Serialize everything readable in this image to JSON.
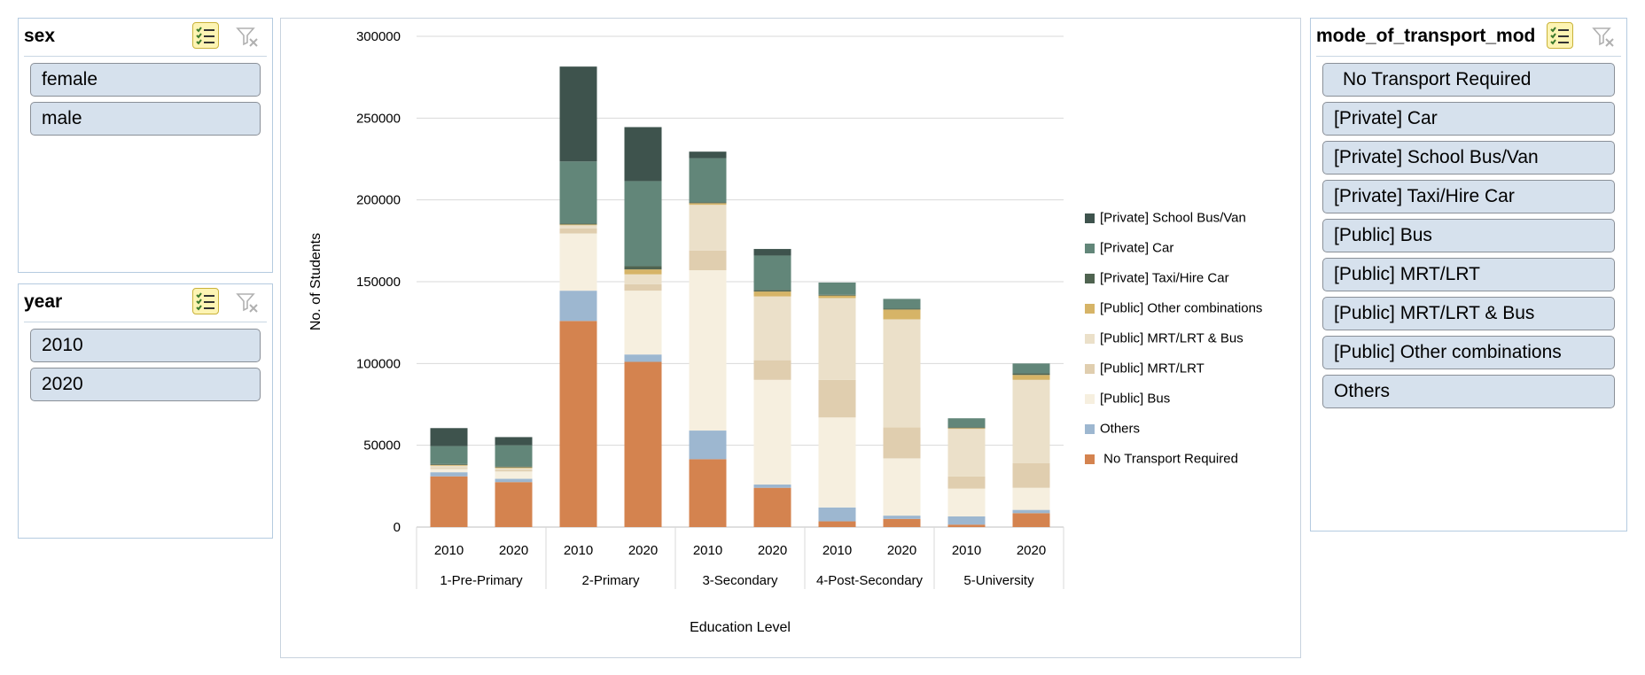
{
  "slicers": {
    "sex": {
      "title": "sex",
      "items": [
        "female",
        "male"
      ]
    },
    "year": {
      "title": "year",
      "items": [
        "2010",
        "2020"
      ]
    },
    "mode": {
      "title": "mode_of_transport_mod",
      "items": [
        " No Transport Required",
        "[Private] Car",
        "[Private] School Bus/Van",
        "[Private] Taxi/Hire Car",
        "[Public] Bus",
        "[Public] MRT/LRT",
        "[Public] MRT/LRT & Bus",
        "[Public] Other combinations",
        "Others"
      ]
    }
  },
  "icons": {
    "multi_select": "multi-select-icon",
    "clear_filter": "clear-filter-icon"
  },
  "chart_data": {
    "type": "bar",
    "stacked": true,
    "xlabel": "Education Level",
    "ylabel": "No. of Students",
    "ylim": [
      0,
      300000
    ],
    "yticks": [
      0,
      50000,
      100000,
      150000,
      200000,
      250000,
      300000
    ],
    "grid": true,
    "legend_position": "right",
    "groups": [
      "1-Pre-Primary",
      "2-Primary",
      "3-Secondary",
      "4-Post-Secondary",
      "5-University"
    ],
    "categories": [
      "2010",
      "2020",
      "2010",
      "2020",
      "2010",
      "2020",
      "2010",
      "2020",
      "2010",
      "2020"
    ],
    "series": [
      {
        "name": " No Transport Required",
        "color": "#d4834f",
        "values": [
          31000,
          27500,
          126000,
          101000,
          41500,
          24000,
          3500,
          5000,
          1500,
          8500
        ]
      },
      {
        "name": "Others",
        "color": "#9db7d0",
        "values": [
          2500,
          2000,
          18500,
          4500,
          17500,
          2000,
          8500,
          2000,
          5000,
          2000
        ]
      },
      {
        "name": "[Public] Bus",
        "color": "#f6efdf",
        "values": [
          2000,
          4500,
          35000,
          39000,
          98000,
          64000,
          55000,
          35000,
          17000,
          13500
        ]
      },
      {
        "name": "[Public] MRT/LRT",
        "color": "#e0ceaf",
        "values": [
          500,
          1000,
          3000,
          4000,
          12000,
          12000,
          23000,
          19000,
          7500,
          15000
        ]
      },
      {
        "name": "[Public] MRT/LRT & Bus",
        "color": "#ebe0c9",
        "values": [
          1500,
          1000,
          2000,
          6000,
          28000,
          39000,
          50000,
          66000,
          29000,
          51000
        ]
      },
      {
        "name": "[Public] Other combinations",
        "color": "#d6b467",
        "values": [
          500,
          500,
          500,
          3000,
          1000,
          3000,
          1500,
          6000,
          500,
          3000
        ]
      },
      {
        "name": "[Private] Taxi/Hire Car",
        "color": "#4f6350",
        "values": [
          500,
          500,
          500,
          2000,
          500,
          1000,
          500,
          500,
          500,
          1000
        ]
      },
      {
        "name": "[Private] Car",
        "color": "#628679",
        "values": [
          11000,
          13000,
          38000,
          52000,
          27000,
          21000,
          7500,
          6000,
          5500,
          6000
        ]
      },
      {
        "name": "[Private] School Bus/Van",
        "color": "#3e534d",
        "values": [
          11000,
          5000,
          58000,
          33000,
          4000,
          4000,
          0,
          0,
          0,
          0
        ]
      }
    ],
    "legend_order": [
      "[Private] School Bus/Van",
      "[Private] Car",
      "[Private] Taxi/Hire Car",
      "[Public] Other combinations",
      "[Public] MRT/LRT & Bus",
      "[Public] MRT/LRT",
      "[Public] Bus",
      "Others",
      " No Transport Required"
    ]
  }
}
